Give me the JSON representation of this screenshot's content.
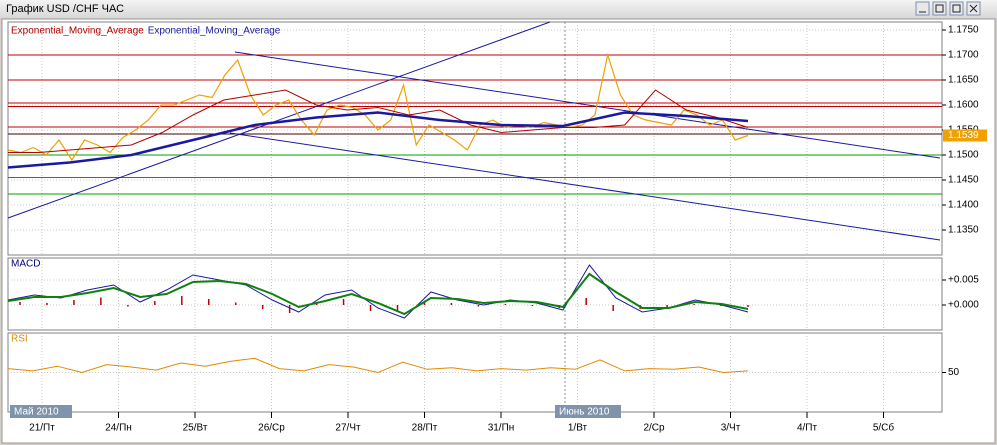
{
  "window": {
    "title": "График USD /CHF ЧАС"
  },
  "time_axis": {
    "labels": [
      "21/Пт",
      "24/Пн",
      "25/Вт",
      "26/Ср",
      "27/Чт",
      "28/Пт",
      "31/Пн",
      "1/Вт",
      "2/Ср",
      "3/Чт",
      "4/Пт",
      "5/Сб"
    ],
    "months": [
      "Май 2010",
      "Июнь 2010"
    ]
  },
  "chart_data": [
    {
      "type": "line",
      "ylim": [
        1.13,
        1.1766
      ],
      "yticks": [
        {
          "value": 1.175,
          "label": "1.1750"
        },
        {
          "value": 1.17,
          "label": "1.1700"
        },
        {
          "value": 1.165,
          "label": "1.1650"
        },
        {
          "value": 1.16,
          "label": "1.1600"
        },
        {
          "value": 1.155,
          "label": "1.1550"
        },
        {
          "value": 1.15,
          "label": "1.1500"
        },
        {
          "value": 1.145,
          "label": "1.1450"
        },
        {
          "value": 1.14,
          "label": "1.1400"
        },
        {
          "value": 1.135,
          "label": "1.1350"
        }
      ],
      "grid": true,
      "last_price": 1.1539,
      "levels": [
        {
          "value": 1.17,
          "color": "#c00000"
        },
        {
          "value": 1.165,
          "color": "#c00000"
        },
        {
          "value": 1.1604,
          "color": "#c00000"
        },
        {
          "value": 1.1597,
          "color": "#c00000"
        },
        {
          "value": 1.1556,
          "color": "#c00000"
        },
        {
          "value": 1.1542,
          "color": "#400000"
        },
        {
          "value": 1.15,
          "color": "#00a000"
        },
        {
          "value": 1.1455,
          "color": "#00a000"
        },
        {
          "value": 1.1422,
          "color": "#00a000"
        }
      ],
      "series": [
        {
          "color": "#f0a000",
          "width": 1.2,
          "values": [
            1.151,
            1.1505,
            1.1515,
            1.15,
            1.153,
            1.149,
            1.153,
            1.152,
            1.1505,
            1.1535,
            1.155,
            1.157,
            1.16,
            1.16,
            1.161,
            1.162,
            1.1615,
            1.166,
            1.169,
            1.162,
            1.158,
            1.16,
            1.161,
            1.157,
            1.154,
            1.159,
            1.16,
            1.1595,
            1.158,
            1.155,
            1.157,
            1.164,
            1.152,
            1.156,
            1.1545,
            1.153,
            1.151,
            1.156,
            1.157,
            1.1555,
            1.156,
            1.1555,
            1.1565,
            1.156,
            1.1555,
            1.156,
            1.158,
            1.17,
            1.162,
            1.158,
            1.157,
            1.1565,
            1.156,
            1.159,
            1.158,
            1.156,
            1.157,
            1.153,
            1.1539
          ]
        },
        {
          "name": "Exponential_Moving_Average",
          "color": "#b00000",
          "width": 1,
          "values": [
            1.1505,
            1.1505,
            1.151,
            1.1515,
            1.152,
            1.1545,
            1.158,
            1.161,
            1.162,
            1.163,
            1.16,
            1.159,
            1.1595,
            1.158,
            1.159,
            1.156,
            1.1545,
            1.155,
            1.1555,
            1.1555,
            1.156,
            1.163,
            1.159,
            1.1575,
            1.1555
          ]
        },
        {
          "name": "Exponential_Moving_Average",
          "color": "#1a1aa0",
          "width": 2.5,
          "values": [
            1.1475,
            1.1485,
            1.15,
            1.153,
            1.156,
            1.1575,
            1.1585,
            1.157,
            1.156,
            1.1558,
            1.1585,
            1.1578,
            1.1568
          ]
        }
      ]
    },
    {
      "type": "line",
      "title": "MACD",
      "ylim": [
        -0.005,
        0.0094
      ],
      "yticks": [
        {
          "value": 0.005,
          "label": "+0.005"
        },
        {
          "value": 0,
          "label": "+0.000"
        }
      ],
      "grid": true,
      "histogram": {
        "color": "#c00000",
        "values": [
          0.0006,
          0.0004,
          0.001,
          0.0015,
          -0.0003,
          0.0008,
          0.0018,
          0.0012,
          0.0005,
          -0.0008,
          -0.0016,
          0.0004,
          0.0012,
          -0.0012,
          -0.0014,
          0.0006,
          0.0004,
          -0.0003,
          0.0002,
          -0.0002,
          -0.0006,
          0.0014,
          -0.0012,
          -0.0008,
          -0.0004,
          0.0002,
          -0.0002,
          -0.0004
        ]
      },
      "series": [
        {
          "color": "#1a1aa0",
          "width": 1,
          "values": [
            0.001,
            0.002,
            0.0014,
            0.003,
            0.004,
            0.0006,
            0.003,
            0.006,
            0.005,
            0.004,
            0.001,
            -0.0014,
            0.002,
            0.003,
            -0.0006,
            -0.0026,
            0.0026,
            0.001,
            0,
            0.001,
            0.0004,
            -0.001,
            0.008,
            0.0014,
            -0.0014,
            -0.0006,
            0.001,
            0,
            -0.0014
          ]
        },
        {
          "color": "#108010",
          "width": 2,
          "values": [
            0.0008,
            0.0016,
            0.0016,
            0.0024,
            0.0034,
            0.0016,
            0.0022,
            0.0046,
            0.0048,
            0.0042,
            0.0022,
            -0.0004,
            0.0008,
            0.0022,
            0.0004,
            -0.0018,
            0.0014,
            0.0012,
            0.0004,
            0.0008,
            0.0006,
            -0.0004,
            0.0062,
            0.0026,
            -0.0006,
            -0.0006,
            0.0006,
            0.0002,
            -0.0008
          ]
        }
      ]
    },
    {
      "type": "line",
      "title": "RSI",
      "ylim": [
        0,
        100
      ],
      "yticks": [
        50
      ],
      "grid": true,
      "series": [
        {
          "color": "#e08a00",
          "width": 1,
          "values": [
            55,
            52,
            58,
            50,
            60,
            57,
            53,
            62,
            58,
            64,
            68,
            55,
            52,
            60,
            57,
            50,
            63,
            54,
            56,
            52,
            55,
            53,
            56,
            54,
            66,
            52,
            55,
            54,
            57,
            50,
            52
          ]
        }
      ]
    }
  ]
}
